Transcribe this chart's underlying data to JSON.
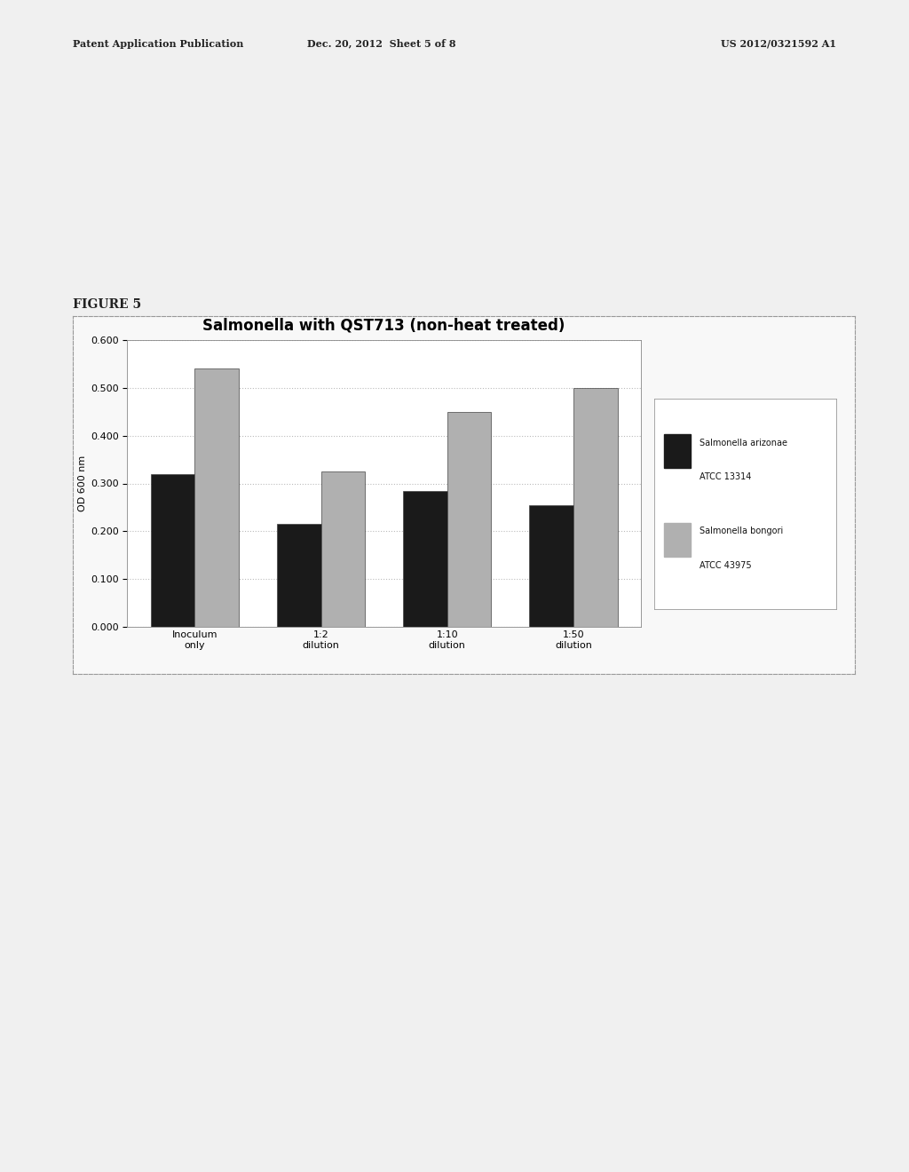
{
  "title": "Salmonella with QST713 (non-heat treated)",
  "ylabel": "OD 600 nm",
  "categories": [
    "Inoculum\nonly",
    "1:2\ndilution",
    "1:10\ndilution",
    "1:50\ndilution"
  ],
  "series": [
    {
      "name": "Salmonella arizonae\nATCC 13314",
      "values": [
        0.32,
        0.215,
        0.285,
        0.255
      ],
      "color": "#1a1a1a"
    },
    {
      "name": "Salmonella bongori\nATCC 43975",
      "values": [
        0.54,
        0.325,
        0.45,
        0.5
      ],
      "color": "#b0b0b0"
    }
  ],
  "ylim": [
    0.0,
    0.6
  ],
  "yticks": [
    0.0,
    0.1,
    0.2,
    0.3,
    0.4,
    0.5,
    0.6
  ],
  "bar_width": 0.35,
  "figure_width": 10.24,
  "figure_height": 13.2,
  "dpi": 100,
  "background_color": "#f0f0f0",
  "chart_bg_color": "#ffffff",
  "grid_color": "#bbbbbb",
  "title_fontsize": 12,
  "axis_label_fontsize": 8,
  "tick_fontsize": 8,
  "legend_fontsize": 8,
  "header_left": "Patent Application Publication",
  "header_mid": "Dec. 20, 2012  Sheet 5 of 8",
  "header_right": "US 2012/0321592 A1",
  "figure_label": "FIGURE 5"
}
